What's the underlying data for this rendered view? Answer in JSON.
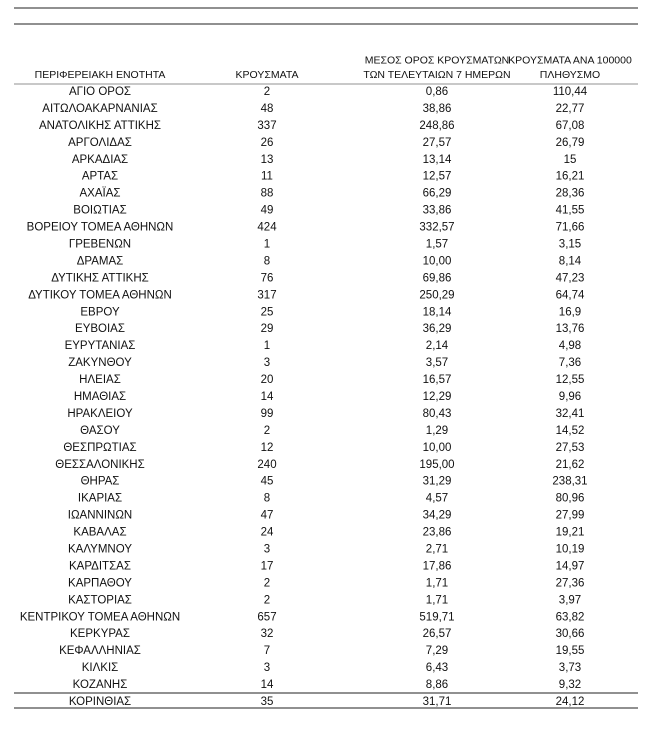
{
  "table": {
    "columns": [
      [
        "ΠΕΡΙΦΕΡΕΙΑΚΗ ΕΝΟΤΗΤΑ"
      ],
      [
        "ΚΡΟΥΣΜΑΤΑ"
      ],
      [
        "ΜΕΣΟΣ ΟΡΟΣ ΚΡΟΥΣΜΑΤΩΝ",
        "ΤΩΝ ΤΕΛΕΥΤΑΙΩΝ 7 ΗΜΕΡΩΝ"
      ],
      [
        "ΚΡΟΥΣΜΑΤΑ ΑΝΑ 100000",
        "ΠΛΗΘΥΣΜΟ"
      ]
    ],
    "rows": [
      [
        "ΑΓΙΟ ΟΡΟΣ",
        "2",
        "0,86",
        "110,44"
      ],
      [
        "ΑΙΤΩΛΟΑΚΑΡΝΑΝΙΑΣ",
        "48",
        "38,86",
        "22,77"
      ],
      [
        "ΑΝΑΤΟΛΙΚΗΣ ΑΤΤΙΚΗΣ",
        "337",
        "248,86",
        "67,08"
      ],
      [
        "ΑΡΓΟΛΙΔΑΣ",
        "26",
        "27,57",
        "26,79"
      ],
      [
        "ΑΡΚΑΔΙΑΣ",
        "13",
        "13,14",
        "15"
      ],
      [
        "ΑΡΤΑΣ",
        "11",
        "12,57",
        "16,21"
      ],
      [
        "ΑΧΑΪΑΣ",
        "88",
        "66,29",
        "28,36"
      ],
      [
        "ΒΟΙΩΤΙΑΣ",
        "49",
        "33,86",
        "41,55"
      ],
      [
        "ΒΟΡΕΙΟΥ ΤΟΜΕΑ ΑΘΗΝΩΝ",
        "424",
        "332,57",
        "71,66"
      ],
      [
        "ΓΡΕΒΕΝΩΝ",
        "1",
        "1,57",
        "3,15"
      ],
      [
        "ΔΡΑΜΑΣ",
        "8",
        "10,00",
        "8,14"
      ],
      [
        "ΔΥΤΙΚΗΣ ΑΤΤΙΚΗΣ",
        "76",
        "69,86",
        "47,23"
      ],
      [
        "ΔΥΤΙΚΟΥ ΤΟΜΕΑ ΑΘΗΝΩΝ",
        "317",
        "250,29",
        "64,74"
      ],
      [
        "ΕΒΡΟΥ",
        "25",
        "18,14",
        "16,9"
      ],
      [
        "ΕΥΒΟΙΑΣ",
        "29",
        "36,29",
        "13,76"
      ],
      [
        "ΕΥΡΥΤΑΝΙΑΣ",
        "1",
        "2,14",
        "4,98"
      ],
      [
        "ΖΑΚΥΝΘΟΥ",
        "3",
        "3,57",
        "7,36"
      ],
      [
        "ΗΛΕΙΑΣ",
        "20",
        "16,57",
        "12,55"
      ],
      [
        "ΗΜΑΘΙΑΣ",
        "14",
        "12,29",
        "9,96"
      ],
      [
        "ΗΡΑΚΛΕΙΟΥ",
        "99",
        "80,43",
        "32,41"
      ],
      [
        "ΘΑΣΟΥ",
        "2",
        "1,29",
        "14,52"
      ],
      [
        "ΘΕΣΠΡΩΤΙΑΣ",
        "12",
        "10,00",
        "27,53"
      ],
      [
        "ΘΕΣΣΑΛΟΝΙΚΗΣ",
        "240",
        "195,00",
        "21,62"
      ],
      [
        "ΘΗΡΑΣ",
        "45",
        "31,29",
        "238,31"
      ],
      [
        "ΙΚΑΡΙΑΣ",
        "8",
        "4,57",
        "80,96"
      ],
      [
        "ΙΩΑΝΝΙΝΩΝ",
        "47",
        "34,29",
        "27,99"
      ],
      [
        "ΚΑΒΑΛΑΣ",
        "24",
        "23,86",
        "19,21"
      ],
      [
        "ΚΑΛΥΜΝΟΥ",
        "3",
        "2,71",
        "10,19"
      ],
      [
        "ΚΑΡΔΙΤΣΑΣ",
        "17",
        "17,86",
        "14,97"
      ],
      [
        "ΚΑΡΠΑΘΟΥ",
        "2",
        "1,71",
        "27,36"
      ],
      [
        "ΚΑΣΤΟΡΙΑΣ",
        "2",
        "1,71",
        "3,97"
      ],
      [
        "ΚΕΝΤΡΙΚΟΥ ΤΟΜΕΑ ΑΘΗΝΩΝ",
        "657",
        "519,71",
        "63,82"
      ],
      [
        "ΚΕΡΚΥΡΑΣ",
        "32",
        "26,57",
        "30,66"
      ],
      [
        "ΚΕΦΑΛΛΗΝΙΑΣ",
        "7",
        "7,29",
        "19,55"
      ],
      [
        "ΚΙΛΚΙΣ",
        "3",
        "6,43",
        "3,73"
      ],
      [
        "ΚΟΖΑΝΗΣ",
        "14",
        "8,86",
        "9,32"
      ],
      [
        "ΚΟΡΙΝΘΙΑΣ",
        "35",
        "31,71",
        "24,12"
      ]
    ]
  }
}
